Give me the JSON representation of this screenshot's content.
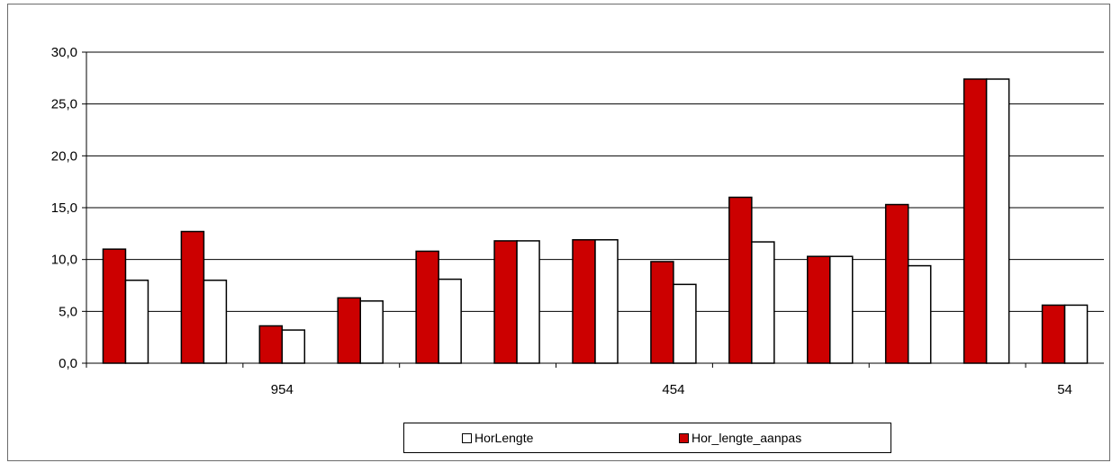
{
  "chart_data": {
    "type": "bar",
    "title": "",
    "xlabel": "",
    "ylabel": "",
    "ylim": [
      0,
      30
    ],
    "yticks": [
      "0,0",
      "5,0",
      "10,0",
      "15,0",
      "20,0",
      "25,0",
      "30,0"
    ],
    "grid": true,
    "legend_position": "bottom",
    "x_tick_labels": [
      {
        "label": "954",
        "index": 2
      },
      {
        "label": "454",
        "index": 7
      },
      {
        "label": "54",
        "index": 12
      }
    ],
    "categories": [
      "",
      "",
      "954",
      "",
      "",
      "",
      "",
      "454",
      "",
      "",
      "",
      "",
      "54"
    ],
    "series": [
      {
        "name": "Hor_lengte_aanpas",
        "color": "#cc0000",
        "values": [
          11.0,
          12.7,
          3.6,
          6.3,
          10.8,
          11.8,
          11.9,
          9.8,
          16.0,
          10.3,
          15.3,
          27.4,
          5.6
        ]
      },
      {
        "name": "HorLengte",
        "color": "#ffffff",
        "values": [
          8.0,
          8.0,
          3.2,
          6.0,
          8.1,
          11.8,
          11.9,
          7.6,
          11.7,
          10.3,
          9.4,
          27.4,
          5.6
        ]
      }
    ]
  },
  "legend": {
    "items": [
      {
        "label": "HorLengte",
        "color": "#ffffff"
      },
      {
        "label": "Hor_lengte_aanpas",
        "color": "#cc0000"
      }
    ]
  }
}
